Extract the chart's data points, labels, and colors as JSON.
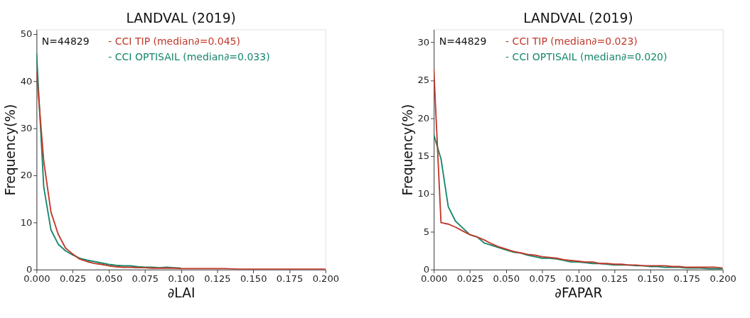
{
  "chart_data": [
    {
      "type": "line",
      "title": "LANDVAL (2019)",
      "xlabel": "∂LAI",
      "ylabel": "Frequency(%)",
      "xlim": [
        0,
        0.2
      ],
      "ylim": [
        0,
        51
      ],
      "xticks": [
        {
          "value": 0,
          "label": "0.000"
        },
        {
          "value": 0.025,
          "label": "0.025"
        },
        {
          "value": 0.05,
          "label": "0.050"
        },
        {
          "value": 0.075,
          "label": "0.075"
        },
        {
          "value": 0.1,
          "label": "0.100"
        },
        {
          "value": 0.125,
          "label": "0.125"
        },
        {
          "value": 0.15,
          "label": "0.150"
        },
        {
          "value": 0.175,
          "label": "0.175"
        },
        {
          "value": 0.2,
          "label": "0.200"
        }
      ],
      "yticks": [
        0,
        10,
        20,
        30,
        40,
        50
      ],
      "grid": false,
      "legend": "top",
      "annotations": [
        "N=44829"
      ],
      "x": [
        0,
        0.005,
        0.01,
        0.015,
        0.02,
        0.025,
        0.03,
        0.035,
        0.04,
        0.045,
        0.05,
        0.055,
        0.06,
        0.065,
        0.07,
        0.075,
        0.08,
        0.085,
        0.09,
        0.095,
        0.1,
        0.11,
        0.12,
        0.13,
        0.14,
        0.15,
        0.16,
        0.17,
        0.18,
        0.19,
        0.2
      ],
      "series": [
        {
          "name": "- CCI TIP (median∂=0.045)",
          "color": "#c0392b",
          "values": [
            42,
            23,
            12.2,
            7.5,
            4.6,
            3.3,
            2.2,
            1.7,
            1.3,
            1.1,
            0.8,
            0.6,
            0.5,
            0.5,
            0.4,
            0.4,
            0.3,
            0.3,
            0.3,
            0.3,
            0.2,
            0.2,
            0.2,
            0.2,
            0.1,
            0.1,
            0.1,
            0.1,
            0.1,
            0.1,
            0.1
          ]
        },
        {
          "name": "- CCI OPTISAIL (median∂=0.033)",
          "color": "#16876b",
          "values": [
            46,
            17.5,
            8.4,
            5.4,
            4.0,
            3.1,
            2.4,
            2.0,
            1.7,
            1.4,
            1.1,
            0.9,
            0.8,
            0.8,
            0.6,
            0.5,
            0.5,
            0.4,
            0.5,
            0.4,
            0.3,
            null,
            null,
            null,
            null,
            null,
            null,
            null,
            null,
            null,
            null
          ]
        }
      ]
    },
    {
      "type": "line",
      "title": "LANDVAL (2019)",
      "xlabel": "∂FAPAR",
      "ylabel": "Frequency(%)",
      "xlim": [
        0,
        0.2
      ],
      "ylim": [
        0,
        31.7
      ],
      "xticks": [
        {
          "value": 0,
          "label": "0.000"
        },
        {
          "value": 0.025,
          "label": "0.025"
        },
        {
          "value": 0.05,
          "label": "0.050"
        },
        {
          "value": 0.075,
          "label": "0.075"
        },
        {
          "value": 0.1,
          "label": "0.100"
        },
        {
          "value": 0.125,
          "label": "0.125"
        },
        {
          "value": 0.15,
          "label": "0.150"
        },
        {
          "value": 0.175,
          "label": "0.175"
        },
        {
          "value": 0.2,
          "label": "0.200"
        }
      ],
      "yticks": [
        0,
        5,
        10,
        15,
        20,
        25,
        30
      ],
      "grid": false,
      "legend": "top",
      "annotations": [
        "N=44829"
      ],
      "x": [
        0,
        0.005,
        0.01,
        0.015,
        0.02,
        0.025,
        0.03,
        0.035,
        0.04,
        0.045,
        0.05,
        0.055,
        0.06,
        0.065,
        0.07,
        0.075,
        0.08,
        0.085,
        0.09,
        0.095,
        0.1,
        0.105,
        0.11,
        0.115,
        0.12,
        0.125,
        0.13,
        0.135,
        0.14,
        0.145,
        0.15,
        0.155,
        0.16,
        0.165,
        0.17,
        0.175,
        0.18,
        0.185,
        0.19,
        0.195,
        0.2
      ],
      "series": [
        {
          "name": "- CCI TIP (median∂=0.023)",
          "color": "#c0392b",
          "values": [
            26.5,
            6.2,
            6.0,
            5.6,
            5.1,
            4.6,
            4.3,
            3.9,
            3.4,
            3.0,
            2.7,
            2.4,
            2.2,
            2.0,
            1.9,
            1.7,
            1.6,
            1.5,
            1.3,
            1.2,
            1.1,
            1.0,
            1.0,
            0.8,
            0.8,
            0.7,
            0.7,
            0.6,
            0.6,
            0.5,
            0.5,
            0.5,
            0.5,
            0.4,
            0.4,
            0.3,
            0.3,
            0.3,
            0.3,
            0.3,
            0.2
          ]
        },
        {
          "name": "- CCI OPTISAIL (median∂=0.020)",
          "color": "#16876b",
          "values": [
            17.8,
            14.6,
            8.3,
            6.4,
            5.5,
            4.6,
            4.3,
            3.5,
            3.2,
            2.9,
            2.6,
            2.3,
            2.2,
            1.9,
            1.7,
            1.5,
            1.5,
            1.4,
            1.2,
            1.0,
            1.0,
            0.9,
            0.8,
            0.8,
            0.7,
            0.6,
            0.6,
            0.6,
            0.5,
            0.5,
            0.4,
            0.4,
            0.3,
            0.3,
            0.3,
            0.2,
            0.2,
            0.2,
            0.1,
            0.1,
            0.1
          ]
        }
      ]
    }
  ]
}
